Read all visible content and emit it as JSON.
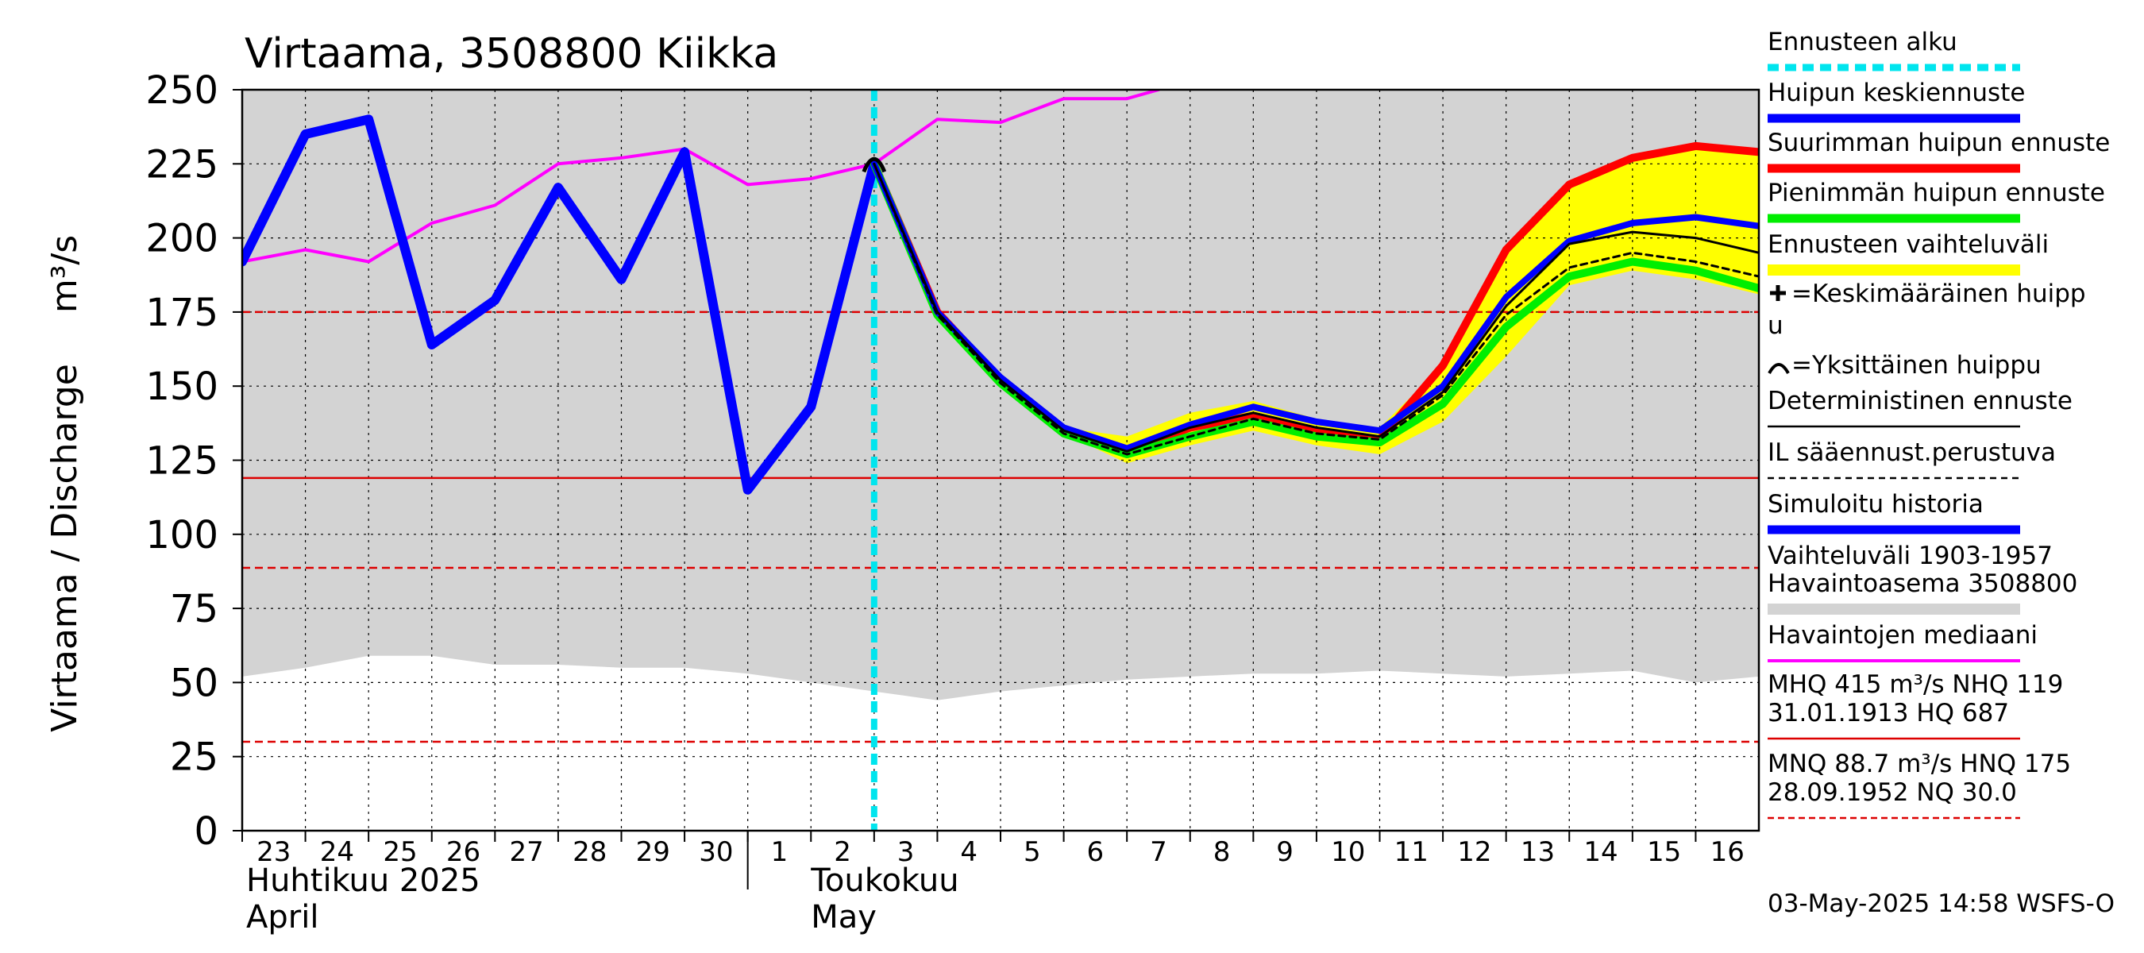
{
  "chart_data": {
    "type": "line",
    "title": "Virtaama, 3508800 Kiikka",
    "ylabel": "Virtaama / Discharge",
    "yunit": "m³/s",
    "ylim": [
      0,
      250
    ],
    "yticks": [
      0,
      25,
      50,
      75,
      100,
      125,
      150,
      175,
      200,
      225,
      250
    ],
    "xlim": [
      0,
      24
    ],
    "x_tick_labels": [
      "23",
      "24",
      "25",
      "26",
      "27",
      "28",
      "29",
      "30",
      "1",
      "2",
      "3",
      "4",
      "5",
      "6",
      "7",
      "8",
      "9",
      "10",
      "11",
      "12",
      "13",
      "14",
      "15",
      "16"
    ],
    "month_labels": [
      {
        "fi": "Huhtikuu  2025",
        "en": "April"
      },
      {
        "fi": "Toukokuu",
        "en": "May"
      }
    ],
    "forecast_start_x": 10,
    "single_peak": {
      "x": 10,
      "y": 225
    },
    "hlines": {
      "hnq": 175,
      "mq_solid": 119,
      "mnq": 88.7,
      "nq": 30.0
    },
    "historical_range_band": {
      "upper": 250,
      "lower_x": [
        0,
        1,
        2,
        3,
        4,
        5,
        6,
        7,
        8,
        9,
        10,
        11,
        12,
        13,
        14,
        15,
        16,
        17,
        18,
        19,
        20,
        21,
        22,
        23,
        24
      ],
      "lower_y": [
        52,
        55,
        59,
        59,
        56,
        56,
        55,
        55,
        53,
        50,
        47,
        44,
        47,
        49,
        51,
        52,
        53,
        53,
        54,
        53,
        52,
        53,
        54,
        50,
        52
      ]
    },
    "forecast_range_band": {
      "x": [
        10,
        11,
        12,
        13,
        14,
        15,
        16,
        17,
        18,
        19,
        20,
        21,
        22,
        23,
        24
      ],
      "upper": [
        225,
        176,
        153,
        136,
        133,
        141,
        145,
        139,
        136,
        157,
        196,
        218,
        227,
        231,
        229
      ],
      "lower": [
        225,
        174,
        151,
        134,
        124,
        130,
        135,
        130,
        127,
        138,
        160,
        184,
        189,
        186,
        181
      ]
    },
    "series": [
      {
        "name": "Havaintojen mediaani",
        "color": "#ff00ff",
        "x": [
          0,
          1,
          2,
          3,
          4,
          5,
          6,
          7,
          8,
          9,
          10,
          11,
          12,
          13,
          14,
          14.5
        ],
        "y": [
          192,
          196,
          192,
          205,
          211,
          225,
          227,
          230,
          218,
          220,
          225,
          240,
          239,
          247,
          247,
          250
        ]
      },
      {
        "name": "Simuloitu historia",
        "color": "#0000ff",
        "x": [
          0,
          1,
          2,
          3,
          4,
          5,
          6,
          7,
          8,
          9,
          10
        ],
        "y": [
          192,
          235,
          240,
          164,
          179,
          217,
          186,
          229,
          115,
          143,
          225
        ]
      },
      {
        "name": "Suurimman huipun ennuste",
        "color": "#ff0000",
        "x": [
          10,
          11,
          12,
          13,
          14,
          15,
          16,
          17,
          18,
          19,
          20,
          21,
          22,
          23,
          24
        ],
        "y": [
          225,
          175,
          152,
          135,
          128,
          136,
          140,
          135,
          132,
          157,
          196,
          218,
          227,
          231,
          229
        ]
      },
      {
        "name": "Pienimmän huipun ennuste",
        "color": "#00ee00",
        "x": [
          10,
          11,
          12,
          13,
          14,
          15,
          16,
          17,
          18,
          19,
          20,
          21,
          22,
          23,
          24
        ],
        "y": [
          225,
          174,
          151,
          134,
          127,
          133,
          138,
          133,
          131,
          144,
          170,
          187,
          192,
          189,
          183
        ]
      },
      {
        "name": "Huipun keskiennuste",
        "color": "#0000ff",
        "x": [
          10,
          11,
          12,
          13,
          14,
          15,
          16,
          17,
          18,
          19,
          20,
          21,
          22,
          23,
          24
        ],
        "y": [
          225,
          175,
          153,
          136,
          129,
          137,
          143,
          138,
          135,
          150,
          180,
          199,
          205,
          207,
          204
        ]
      },
      {
        "name": "Deterministinen ennuste",
        "color": "#000000",
        "x": [
          10,
          11,
          12,
          13,
          14,
          15,
          16,
          17,
          18,
          19,
          20,
          21,
          22,
          23,
          24
        ],
        "y": [
          225,
          175,
          152,
          135,
          128,
          136,
          141,
          136,
          133,
          148,
          177,
          198,
          202,
          200,
          195
        ]
      },
      {
        "name": "IL sääennust.perustuva",
        "color": "#000000",
        "x": [
          10,
          11,
          12,
          13,
          14,
          15,
          16,
          17,
          18,
          19,
          20,
          21,
          22,
          23,
          24
        ],
        "y": [
          225,
          174,
          151,
          134,
          127,
          133,
          139,
          134,
          132,
          147,
          174,
          190,
          195,
          192,
          187
        ]
      }
    ],
    "legend": [
      "Ennusteen alku",
      "Huipun keskiennuste",
      "Suurimman huipun ennuste",
      "Pienimmän huipun ennuste",
      "Ennusteen vaihteluväli",
      "=Keskimääräinen huipp",
      "u",
      "=Yksittäinen huippu",
      "Deterministinen ennuste",
      "IL sääennust.perustuva",
      "Simuloitu historia",
      "Vaihteluväli 1903-1957",
      " Havaintoasema 3508800",
      "Havaintojen mediaani",
      "MHQ  415 m³/s NHQ  119",
      "31.01.1913 HQ  687",
      "MNQ 88.7 m³/s HNQ  175",
      "28.09.1952 NQ 30.0"
    ],
    "timestamp": "03-May-2025 14:58 WSFS-O"
  },
  "colors": {
    "band": "#d3d3d3",
    "forecast_band": "#ffff00",
    "forecast_start": "#00e5ee",
    "ref_lines": "#dd0000"
  }
}
